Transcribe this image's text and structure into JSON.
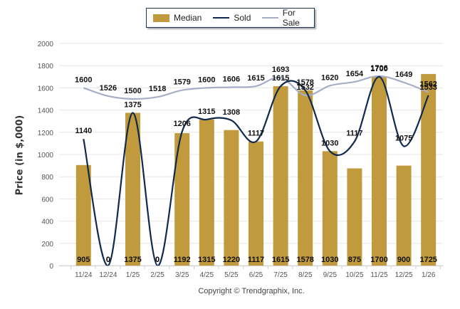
{
  "chart_data": {
    "type": "bar",
    "title": "",
    "xlabel": "",
    "ylabel": "Price (in $,000)",
    "ylim": [
      0,
      2000
    ],
    "yticks": [
      0,
      200,
      400,
      600,
      800,
      1000,
      1200,
      1400,
      1600,
      1800,
      2000
    ],
    "grid": true,
    "legend_position": "top-center",
    "categories": [
      "11/24",
      "12/24",
      "1/25",
      "2/25",
      "3/25",
      "4/25",
      "5/25",
      "6/25",
      "7/25",
      "8/25",
      "9/25",
      "10/25",
      "11/25",
      "12/25",
      "1/26"
    ],
    "series": [
      {
        "name": "Median",
        "type": "bar",
        "color": "#c19a3d",
        "values": [
          905,
          0,
          1375,
          0,
          1192,
          1315,
          1220,
          1117,
          1615,
          1578,
          1030,
          875,
          1700,
          900,
          1725
        ]
      },
      {
        "name": "Sold",
        "type": "line",
        "color": "#0f2a4d",
        "values": [
          1140,
          0,
          1375,
          0,
          1206,
          1315,
          1308,
          1117,
          1615,
          1578,
          1030,
          1117,
          1700,
          1075,
          1533
        ]
      },
      {
        "name": "For Sale",
        "type": "line",
        "color": "#a6aec6",
        "values": [
          1600,
          1526,
          1500,
          1518,
          1579,
          1600,
          1606,
          1615,
          1693,
          1532,
          1620,
          1654,
          1706,
          1649,
          1562
        ]
      }
    ]
  },
  "legend": {
    "median": "Median",
    "sold": "Sold",
    "for_sale": "For Sale"
  },
  "footer": {
    "copyright": "Copyright © Trendgraphix, Inc."
  }
}
